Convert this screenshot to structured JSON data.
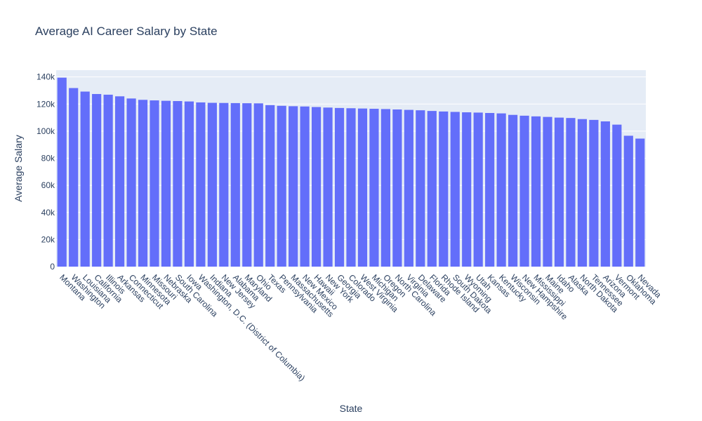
{
  "chart_data": {
    "type": "bar",
    "title": "Average AI Career Salary by State",
    "xlabel": "State",
    "ylabel": "Average Salary",
    "ylim": [
      0,
      145000
    ],
    "yticks": [
      0,
      20000,
      40000,
      60000,
      80000,
      100000,
      120000,
      140000
    ],
    "ytick_labels": [
      "0",
      "20k",
      "40k",
      "60k",
      "80k",
      "100k",
      "120k",
      "140k"
    ],
    "grid": true,
    "colors": {
      "bar": "#636efa",
      "plot_bg": "#e5ecf6",
      "grid": "#ffffff",
      "text": "#2a3f5f"
    },
    "categories": [
      "Montana",
      "Washington",
      "Louisiana",
      "California",
      "Illinois",
      "Arkansas",
      "Connecticut",
      "Minnesota",
      "Missouri",
      "Nebraska",
      "South Carolina",
      "Iowa",
      "Washington, D.C. (District of Columbia)",
      "Indiana",
      "New Jersey",
      "Alabama",
      "Maryland",
      "Ohio",
      "Texas",
      "Pennsylvania",
      "Massachusetts",
      "New Mexico",
      "Hawaii",
      "New York",
      "Georgia",
      "Colorado",
      "West Virginia",
      "Michigan",
      "Oregon",
      "North Carolina",
      "Virginia",
      "Delaware",
      "Florida",
      "Rhode Island",
      "South Dakota",
      "Wyoming",
      "Utah",
      "Kansas",
      "Kentucky",
      "Wisconsin",
      "New Hampshire",
      "Mississippi",
      "Maine",
      "Idaho",
      "Alaska",
      "North Dakota",
      "Tennessee",
      "Arizona",
      "Vermont",
      "Oklahoma",
      "Nevada"
    ],
    "values": [
      139500,
      131800,
      129200,
      127400,
      126900,
      125700,
      124100,
      123100,
      122700,
      122400,
      122200,
      121900,
      121200,
      120900,
      120800,
      120700,
      120600,
      120500,
      119200,
      118700,
      118400,
      118200,
      117800,
      117400,
      117100,
      116900,
      116700,
      116500,
      116300,
      116000,
      115700,
      115400,
      114900,
      114500,
      114200,
      113900,
      113700,
      113400,
      113100,
      112000,
      111400,
      110900,
      110500,
      110000,
      109700,
      108900,
      108300,
      107200,
      104800,
      96600,
      94500
    ]
  }
}
